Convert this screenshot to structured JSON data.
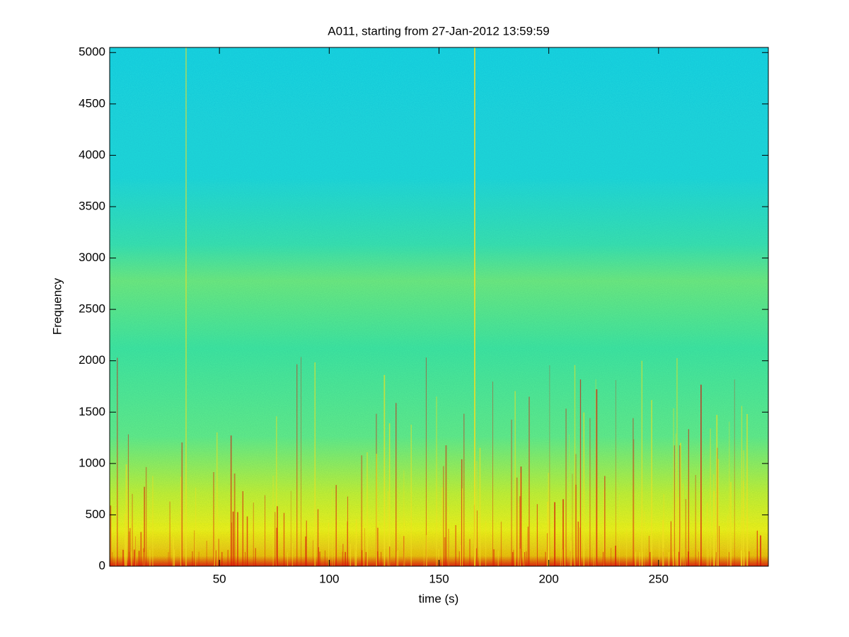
{
  "chart_data": {
    "type": "spectrogram",
    "title": "A011, starting from 27-Jan-2012 13:59:59",
    "xlabel": "time (s)",
    "ylabel": "Frequency",
    "xlim": [
      0,
      300
    ],
    "ylim": [
      0,
      5050
    ],
    "xticks": [
      50,
      100,
      150,
      200,
      250
    ],
    "yticks": [
      0,
      500,
      1000,
      1500,
      2000,
      2500,
      3000,
      3500,
      4000,
      4500,
      5000
    ]
  }
}
